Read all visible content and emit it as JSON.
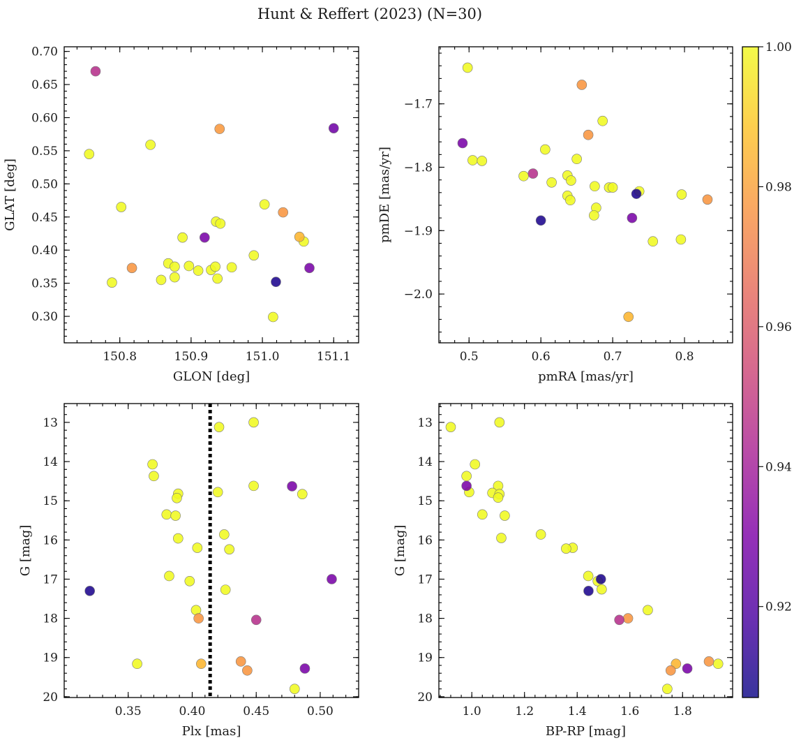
{
  "figure": {
    "title": "Hunt & Reffert (2023) (N=30)"
  },
  "colorbar": {
    "colormap": "plasma",
    "min": 0.907,
    "max": 1.0,
    "ticks": [
      0.92,
      0.94,
      0.96,
      0.98,
      1.0
    ],
    "tick_labels": [
      "0.92",
      "0.94",
      "0.96",
      "0.98",
      "1.00"
    ]
  },
  "chart_data": [
    {
      "type": "scatter",
      "name": "glon-glat",
      "xlabel": "GLON [deg]",
      "ylabel": "GLAT [deg]",
      "xlim": [
        150.722,
        151.135
      ],
      "ylim": [
        0.26,
        0.707
      ],
      "y_inverted": false,
      "xticks": [
        150.8,
        150.9,
        151.0,
        151.1
      ],
      "xtick_labels": [
        "150.8",
        "150.9",
        "151.0",
        "151.1"
      ],
      "yticks": [
        0.3,
        0.35,
        0.4,
        0.45,
        0.5,
        0.55,
        0.6,
        0.65,
        0.7
      ],
      "ytick_labels": [
        "0.30",
        "0.35",
        "0.40",
        "0.45",
        "0.50",
        "0.55",
        "0.60",
        "0.65",
        "0.70"
      ],
      "x": [
        150.766,
        150.757,
        150.843,
        150.802,
        150.94,
        151.1,
        151.003,
        151.029,
        150.935,
        150.941,
        150.888,
        150.919,
        151.052,
        151.058,
        150.817,
        150.868,
        150.877,
        150.897,
        150.91,
        150.928,
        150.934,
        150.957,
        150.988,
        150.789,
        150.858,
        150.877,
        150.937,
        151.019,
        151.066,
        151.015
      ],
      "y": [
        0.67,
        0.545,
        0.559,
        0.465,
        0.583,
        0.584,
        0.469,
        0.457,
        0.443,
        0.44,
        0.419,
        0.419,
        0.42,
        0.413,
        0.373,
        0.38,
        0.375,
        0.376,
        0.369,
        0.37,
        0.375,
        0.374,
        0.392,
        0.351,
        0.355,
        0.359,
        0.357,
        0.352,
        0.373,
        0.299
      ],
      "c": [
        0.946,
        1.0,
        1.0,
        1.0,
        0.978,
        0.927,
        1.0,
        0.977,
        1.0,
        1.0,
        1.0,
        0.929,
        0.985,
        1.0,
        0.977,
        1.0,
        1.0,
        1.0,
        1.0,
        1.0,
        1.0,
        1.0,
        1.0,
        1.0,
        1.0,
        1.0,
        1.0,
        0.91,
        0.929,
        1.0
      ]
    },
    {
      "type": "scatter",
      "name": "pmra-pmde",
      "xlabel": "pmRA [mas/yr]",
      "ylabel": "pmDE [mas/yr]",
      "xlim": [
        0.458,
        0.867
      ],
      "ylim": [
        -2.077,
        -1.61
      ],
      "y_inverted": false,
      "xticks": [
        0.5,
        0.6,
        0.7,
        0.8
      ],
      "xtick_labels": [
        "0.5",
        "0.6",
        "0.7",
        "0.8"
      ],
      "yticks": [
        -2.0,
        -1.9,
        -1.8,
        -1.7
      ],
      "ytick_labels": [
        "−2.0",
        "−1.9",
        "−1.8",
        "−1.7"
      ],
      "x": [
        0.498,
        0.657,
        0.686,
        0.666,
        0.491,
        0.505,
        0.518,
        0.606,
        0.65,
        0.576,
        0.589,
        0.615,
        0.637,
        0.642,
        0.675,
        0.695,
        0.7,
        0.737,
        0.733,
        0.796,
        0.832,
        0.637,
        0.641,
        0.677,
        0.674,
        0.6,
        0.727,
        0.756,
        0.795,
        0.722
      ],
      "y": [
        -1.643,
        -1.67,
        -1.727,
        -1.749,
        -1.762,
        -1.789,
        -1.79,
        -1.772,
        -1.787,
        -1.814,
        -1.81,
        -1.824,
        -1.813,
        -1.821,
        -1.83,
        -1.832,
        -1.832,
        -1.838,
        -1.842,
        -1.843,
        -1.851,
        -1.845,
        -1.852,
        -1.864,
        -1.876,
        -1.884,
        -1.88,
        -1.917,
        -1.914,
        -2.036
      ],
      "c": [
        1.0,
        0.977,
        1.0,
        0.977,
        0.929,
        1.0,
        1.0,
        1.0,
        1.0,
        1.0,
        0.946,
        1.0,
        1.0,
        1.0,
        1.0,
        1.0,
        1.0,
        1.0,
        0.91,
        1.0,
        0.977,
        1.0,
        1.0,
        1.0,
        1.0,
        0.91,
        0.929,
        1.0,
        1.0,
        0.985
      ]
    },
    {
      "type": "scatter",
      "name": "plx-g",
      "xlabel": "Plx [mas]",
      "ylabel": "G [mag]",
      "xlim": [
        0.3,
        0.53
      ],
      "ylim": [
        12.52,
        20.02
      ],
      "y_inverted": true,
      "xticks": [
        0.35,
        0.4,
        0.45,
        0.5
      ],
      "xtick_labels": [
        "0.35",
        "0.40",
        "0.45",
        "0.50"
      ],
      "yticks": [
        13,
        14,
        15,
        16,
        17,
        18,
        19,
        20
      ],
      "ytick_labels": [
        "13",
        "14",
        "15",
        "16",
        "17",
        "18",
        "19",
        "20"
      ],
      "vline": {
        "x": 0.414,
        "style": "dotted",
        "color": "#000000"
      },
      "x": [
        0.448,
        0.421,
        0.369,
        0.37,
        0.448,
        0.478,
        0.42,
        0.486,
        0.389,
        0.388,
        0.38,
        0.387,
        0.389,
        0.425,
        0.404,
        0.429,
        0.382,
        0.398,
        0.509,
        0.426,
        0.32,
        0.403,
        0.405,
        0.45,
        0.357,
        0.407,
        0.438,
        0.443,
        0.488,
        0.48
      ],
      "y": [
        13.0,
        13.12,
        14.07,
        14.37,
        14.62,
        14.63,
        14.78,
        14.83,
        14.82,
        14.93,
        15.35,
        15.38,
        15.96,
        15.86,
        16.2,
        16.24,
        16.92,
        17.05,
        17.0,
        17.27,
        17.3,
        17.79,
        18.0,
        18.04,
        19.16,
        19.16,
        19.1,
        19.33,
        19.28,
        19.8
      ],
      "c": [
        1.0,
        1.0,
        1.0,
        1.0,
        1.0,
        0.929,
        1.0,
        1.0,
        1.0,
        1.0,
        1.0,
        1.0,
        1.0,
        1.0,
        1.0,
        1.0,
        1.0,
        1.0,
        0.929,
        1.0,
        0.91,
        1.0,
        0.977,
        0.946,
        1.0,
        0.985,
        0.977,
        0.977,
        0.929,
        1.0
      ]
    },
    {
      "type": "scatter",
      "name": "bprp-g",
      "xlabel": "BP-RP [mag]",
      "ylabel": "G [mag]",
      "xlim": [
        0.875,
        1.99
      ],
      "ylim": [
        12.52,
        20.02
      ],
      "y_inverted": true,
      "xticks": [
        1.0,
        1.2,
        1.4,
        1.6,
        1.8
      ],
      "xtick_labels": [
        "1.0",
        "1.2",
        "1.4",
        "1.6",
        "1.8"
      ],
      "yticks": [
        13,
        14,
        15,
        16,
        17,
        18,
        19,
        20
      ],
      "ytick_labels": [
        "13",
        "14",
        "15",
        "16",
        "17",
        "18",
        "19",
        "20"
      ],
      "x": [
        0.92,
        1.105,
        1.012,
        0.98,
        0.98,
        1.1,
        0.99,
        1.078,
        1.105,
        1.1,
        1.04,
        1.125,
        1.112,
        1.262,
        1.383,
        1.358,
        1.442,
        1.478,
        1.49,
        1.493,
        1.443,
        1.668,
        1.593,
        1.56,
        1.775,
        1.9,
        1.935,
        1.755,
        1.818,
        1.742
      ],
      "y": [
        13.12,
        13.0,
        14.07,
        14.37,
        14.62,
        14.62,
        14.78,
        14.8,
        14.83,
        14.92,
        15.35,
        15.38,
        15.95,
        15.86,
        16.2,
        16.22,
        16.92,
        17.05,
        17.0,
        17.26,
        17.3,
        17.79,
        18.0,
        18.04,
        19.16,
        19.1,
        19.16,
        19.33,
        19.28,
        19.8
      ],
      "c": [
        1.0,
        1.0,
        1.0,
        1.0,
        0.929,
        1.0,
        1.0,
        1.0,
        1.0,
        1.0,
        1.0,
        1.0,
        1.0,
        1.0,
        1.0,
        1.0,
        1.0,
        1.0,
        0.91,
        1.0,
        0.91,
        1.0,
        0.977,
        0.946,
        0.985,
        0.977,
        1.0,
        0.977,
        0.929,
        1.0
      ]
    }
  ]
}
